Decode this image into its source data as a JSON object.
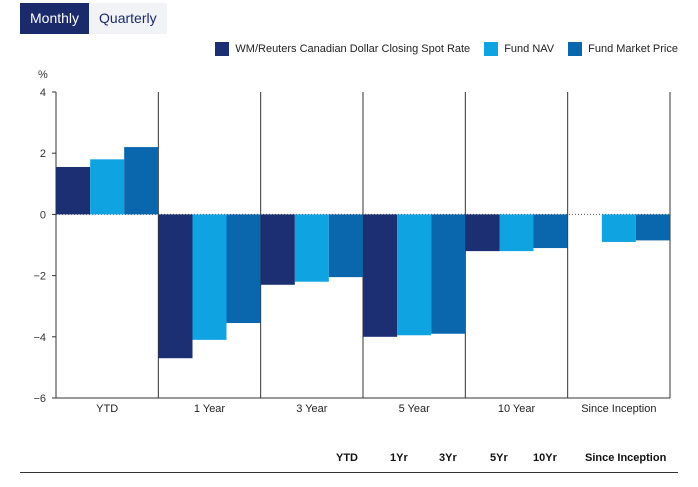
{
  "tabs": [
    {
      "label": "Monthly",
      "active": true
    },
    {
      "label": "Quarterly",
      "active": false
    }
  ],
  "chart_data": {
    "type": "bar",
    "ylabel": "%",
    "ylim": [
      -6,
      4
    ],
    "yticks": [
      4,
      2,
      0,
      -2,
      -4,
      -6
    ],
    "categories": [
      "YTD",
      "1 Year",
      "3 Year",
      "5 Year",
      "10 Year",
      "Since Inception"
    ],
    "series": [
      {
        "name": "WM/Reuters Canadian Dollar Closing Spot Rate",
        "color": "#1c2f73",
        "values": [
          1.55,
          -4.7,
          -2.3,
          -4.0,
          -1.2,
          0
        ]
      },
      {
        "name": "Fund NAV",
        "color": "#10a3e2",
        "values": [
          1.8,
          -4.1,
          -2.2,
          -3.95,
          -1.2,
          -0.9
        ]
      },
      {
        "name": "Fund Market Price",
        "color": "#0a67ad",
        "values": [
          2.2,
          -3.55,
          -2.05,
          -3.9,
          -1.1,
          -0.85
        ]
      }
    ],
    "zero_line": "dotted",
    "grid": false,
    "legend_position": "top-right"
  },
  "footer": {
    "columns": [
      "YTD",
      "1Yr",
      "3Yr",
      "5Yr",
      "10Yr",
      "Since Inception"
    ]
  }
}
